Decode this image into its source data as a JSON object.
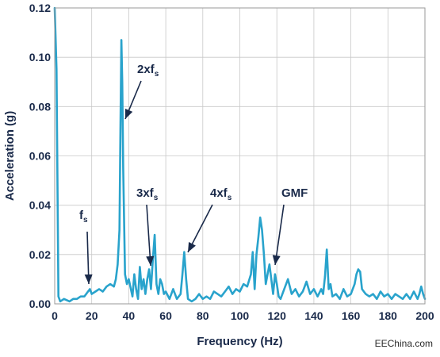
{
  "chart_data": {
    "type": "line",
    "title": "",
    "xlabel": "Frequency (Hz)",
    "ylabel": "Acceleration (g)",
    "xlim": [
      0,
      200
    ],
    "ylim": [
      0,
      0.12
    ],
    "xticks": [
      0,
      20,
      40,
      60,
      80,
      100,
      120,
      140,
      160,
      180,
      200
    ],
    "yticks": [
      0.0,
      0.02,
      0.04,
      0.06,
      0.08,
      0.1,
      0.12
    ],
    "xtick_labels": [
      "0",
      "20",
      "40",
      "60",
      "80",
      "100",
      "120",
      "140",
      "160",
      "180",
      "200"
    ],
    "ytick_labels": [
      "0.00",
      "0.02",
      "0.04",
      "0.06",
      "0.08",
      "0.10",
      "0.12"
    ],
    "grid": true,
    "line_color": "#29a3cc",
    "series": [
      {
        "x": [
          0,
          1,
          2,
          3,
          5,
          8,
          10,
          12,
          14,
          16,
          17,
          18,
          19,
          20,
          22,
          24,
          26,
          28,
          30,
          32,
          33,
          34,
          35,
          35.5,
          36,
          36.5,
          37,
          38,
          39,
          40,
          42,
          43,
          44,
          45,
          46,
          47,
          48,
          49,
          50,
          51,
          52,
          53,
          54,
          55,
          56,
          57,
          58,
          59,
          60,
          62,
          64,
          66,
          68,
          69,
          70,
          71,
          72,
          74,
          76,
          78,
          80,
          82,
          84,
          86,
          88,
          90,
          92,
          94,
          96,
          98,
          100,
          102,
          104,
          106,
          107,
          108,
          109,
          110,
          111,
          112,
          113,
          114,
          115,
          116,
          117,
          118,
          119,
          120,
          121,
          122,
          124,
          126,
          128,
          130,
          132,
          134,
          136,
          138,
          140,
          142,
          144,
          145,
          146,
          147,
          148,
          149,
          150,
          152,
          154,
          156,
          158,
          160,
          162,
          163,
          164,
          165,
          166,
          168,
          170,
          172,
          174,
          176,
          178,
          180,
          182,
          184,
          186,
          188,
          190,
          192,
          194,
          196,
          197,
          198,
          199,
          200
        ],
        "y": [
          0.12,
          0.095,
          0.003,
          0.001,
          0.002,
          0.001,
          0.002,
          0.002,
          0.003,
          0.003,
          0.004,
          0.005,
          0.006,
          0.004,
          0.005,
          0.006,
          0.005,
          0.007,
          0.008,
          0.007,
          0.01,
          0.016,
          0.03,
          0.07,
          0.107,
          0.09,
          0.055,
          0.012,
          0.008,
          0.01,
          0.003,
          0.012,
          0.006,
          0.002,
          0.015,
          0.006,
          0.01,
          0.004,
          0.01,
          0.014,
          0.006,
          0.018,
          0.028,
          0.008,
          0.004,
          0.01,
          0.008,
          0.004,
          0.005,
          0.002,
          0.006,
          0.002,
          0.004,
          0.012,
          0.021,
          0.01,
          0.002,
          0.001,
          0.002,
          0.004,
          0.002,
          0.003,
          0.002,
          0.005,
          0.004,
          0.003,
          0.005,
          0.007,
          0.004,
          0.006,
          0.005,
          0.008,
          0.007,
          0.012,
          0.021,
          0.006,
          0.02,
          0.027,
          0.035,
          0.03,
          0.02,
          0.008,
          0.012,
          0.016,
          0.01,
          0.004,
          0.012,
          0.008,
          0.003,
          0.002,
          0.006,
          0.01,
          0.004,
          0.006,
          0.003,
          0.005,
          0.009,
          0.004,
          0.006,
          0.003,
          0.006,
          0.004,
          0.011,
          0.022,
          0.006,
          0.008,
          0.003,
          0.004,
          0.002,
          0.006,
          0.003,
          0.004,
          0.008,
          0.012,
          0.014,
          0.013,
          0.006,
          0.004,
          0.003,
          0.004,
          0.002,
          0.005,
          0.003,
          0.004,
          0.002,
          0.004,
          0.003,
          0.002,
          0.004,
          0.002,
          0.005,
          0.002,
          0.004,
          0.007,
          0.004,
          0.002
        ]
      }
    ],
    "annotations": [
      {
        "id": "fs",
        "text": "f",
        "sub": "s",
        "x": 18,
        "y": 0.005
      },
      {
        "id": "2xfs",
        "text": "2xf",
        "sub": "s",
        "x": 37,
        "y": 0.076
      },
      {
        "id": "3xfs",
        "text": "3xf",
        "sub": "s",
        "x": 52,
        "y": 0.015
      },
      {
        "id": "4xfs",
        "text": "4xf",
        "sub": "s",
        "x": 71,
        "y": 0.022
      },
      {
        "id": "gmf",
        "text": "GMF",
        "sub": "",
        "x": 119,
        "y": 0.016
      }
    ]
  },
  "watermark": "EEChina.com"
}
